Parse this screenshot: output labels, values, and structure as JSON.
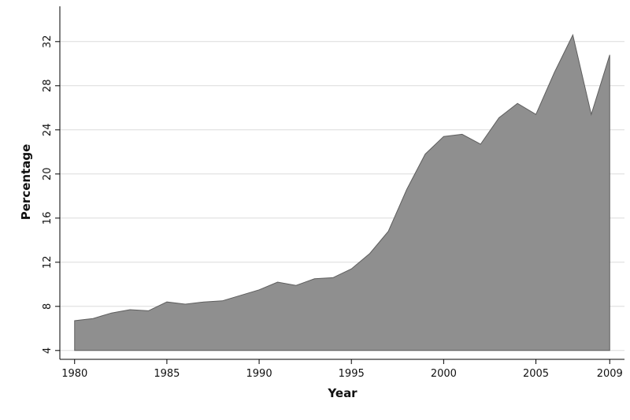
{
  "chart_data": {
    "type": "area",
    "xlabel": "Year",
    "ylabel": "Percentage",
    "xlim": [
      1979.2,
      2009.8
    ],
    "ylim": [
      3.2,
      35.2
    ],
    "xticks": [
      "1980",
      "1985",
      "1990",
      "1995",
      "2000",
      "2005",
      "2009"
    ],
    "yticks": [
      "4",
      "8",
      "12",
      "16",
      "20",
      "24",
      "28",
      "32"
    ],
    "area_base": 4,
    "grid": "horizontal",
    "colors": {
      "fill": "#8f8f8f",
      "line": "#5e5e5e",
      "grid": "#dcdcdc",
      "axis": "#000000"
    },
    "x": [
      1980,
      1981,
      1982,
      1983,
      1984,
      1985,
      1986,
      1987,
      1988,
      1989,
      1990,
      1991,
      1992,
      1993,
      1994,
      1995,
      1996,
      1997,
      1998,
      1999,
      2000,
      2001,
      2002,
      2003,
      2004,
      2005,
      2006,
      2007,
      2008,
      2009
    ],
    "values": [
      6.7,
      6.9,
      7.4,
      7.7,
      7.6,
      8.4,
      8.2,
      8.4,
      8.5,
      9.0,
      9.5,
      10.2,
      9.9,
      10.5,
      10.6,
      11.4,
      12.8,
      14.8,
      18.6,
      21.8,
      23.4,
      23.6,
      22.7,
      25.1,
      26.4,
      25.4,
      29.2,
      32.6,
      25.4,
      30.8
    ]
  }
}
